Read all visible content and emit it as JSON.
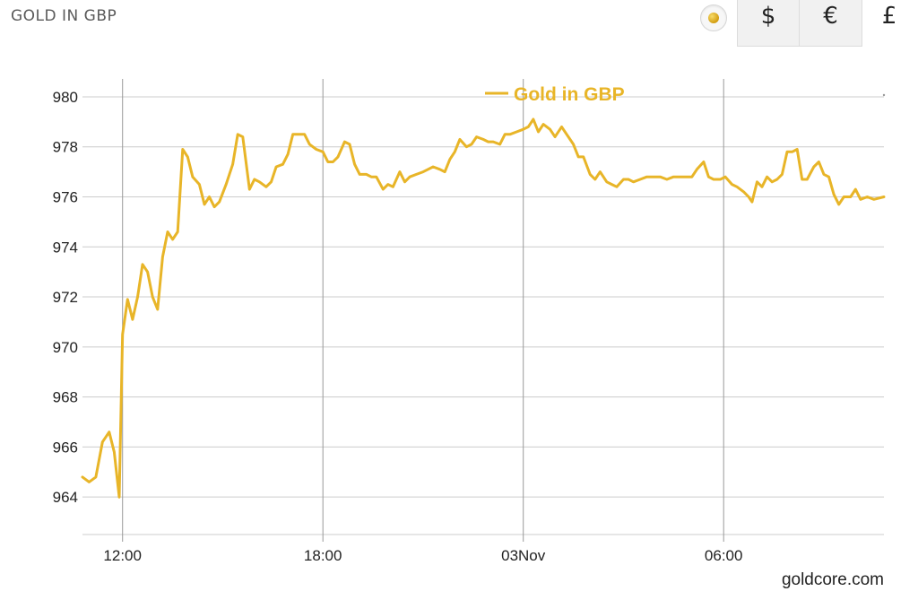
{
  "header": {
    "title": "GOLD IN GBP"
  },
  "currency_tabs": [
    {
      "label": "$",
      "active": false
    },
    {
      "label": "€",
      "active": false
    },
    {
      "label": "£",
      "active": true
    }
  ],
  "icons": {
    "gold_toggle": "gold-dot-icon"
  },
  "colors": {
    "series": "#e8b528",
    "grid": "#cccccc",
    "axis_text": "#222222"
  },
  "watermark": "goldcore.com",
  "chart_data": {
    "type": "line",
    "title": "",
    "xlabel": "",
    "ylabel": "",
    "ylim": [
      962.5,
      980.5
    ],
    "xlim": [
      10.8,
      34.8
    ],
    "grid": true,
    "legend": "top-center",
    "y_ticks": [
      964,
      966,
      968,
      970,
      972,
      974,
      976,
      978,
      980
    ],
    "x_ticks": [
      {
        "value": 12,
        "label": "12:00"
      },
      {
        "value": 18,
        "label": "18:00"
      },
      {
        "value": 24,
        "label": "03Nov"
      },
      {
        "value": 30,
        "label": "06:00"
      }
    ],
    "series": [
      {
        "name": "Gold in GBP",
        "color": "#e8b528",
        "points": [
          [
            10.8,
            964.8
          ],
          [
            11.0,
            964.6
          ],
          [
            11.2,
            964.8
          ],
          [
            11.4,
            966.2
          ],
          [
            11.6,
            966.6
          ],
          [
            11.75,
            965.8
          ],
          [
            11.9,
            964.0
          ],
          [
            12.0,
            970.5
          ],
          [
            12.15,
            971.9
          ],
          [
            12.3,
            971.1
          ],
          [
            12.45,
            972.0
          ],
          [
            12.6,
            973.3
          ],
          [
            12.75,
            973.0
          ],
          [
            12.9,
            972.0
          ],
          [
            13.05,
            971.5
          ],
          [
            13.2,
            973.6
          ],
          [
            13.35,
            974.6
          ],
          [
            13.5,
            974.3
          ],
          [
            13.65,
            974.6
          ],
          [
            13.8,
            977.9
          ],
          [
            13.95,
            977.6
          ],
          [
            14.1,
            976.8
          ],
          [
            14.3,
            976.5
          ],
          [
            14.45,
            975.7
          ],
          [
            14.6,
            976.0
          ],
          [
            14.75,
            975.6
          ],
          [
            14.9,
            975.8
          ],
          [
            15.1,
            976.5
          ],
          [
            15.3,
            977.3
          ],
          [
            15.45,
            978.5
          ],
          [
            15.6,
            978.4
          ],
          [
            15.8,
            976.3
          ],
          [
            15.95,
            976.7
          ],
          [
            16.1,
            976.6
          ],
          [
            16.3,
            976.4
          ],
          [
            16.45,
            976.6
          ],
          [
            16.6,
            977.2
          ],
          [
            16.8,
            977.3
          ],
          [
            16.95,
            977.7
          ],
          [
            17.1,
            978.5
          ],
          [
            17.3,
            978.5
          ],
          [
            17.45,
            978.5
          ],
          [
            17.6,
            978.1
          ],
          [
            17.8,
            977.9
          ],
          [
            18.0,
            977.8
          ],
          [
            18.15,
            977.4
          ],
          [
            18.3,
            977.4
          ],
          [
            18.45,
            977.6
          ],
          [
            18.65,
            978.2
          ],
          [
            18.8,
            978.1
          ],
          [
            18.95,
            977.3
          ],
          [
            19.1,
            976.9
          ],
          [
            19.3,
            976.9
          ],
          [
            19.45,
            976.8
          ],
          [
            19.6,
            976.8
          ],
          [
            19.8,
            976.3
          ],
          [
            19.95,
            976.5
          ],
          [
            20.1,
            976.4
          ],
          [
            20.3,
            977.0
          ],
          [
            20.45,
            976.6
          ],
          [
            20.6,
            976.8
          ],
          [
            20.8,
            976.9
          ],
          [
            21.0,
            977.0
          ],
          [
            21.15,
            977.1
          ],
          [
            21.3,
            977.2
          ],
          [
            21.5,
            977.1
          ],
          [
            21.65,
            977.0
          ],
          [
            21.8,
            977.5
          ],
          [
            21.95,
            977.8
          ],
          [
            22.1,
            978.3
          ],
          [
            22.3,
            978.0
          ],
          [
            22.45,
            978.1
          ],
          [
            22.6,
            978.4
          ],
          [
            22.8,
            978.3
          ],
          [
            22.95,
            978.2
          ],
          [
            23.1,
            978.2
          ],
          [
            23.3,
            978.1
          ],
          [
            23.45,
            978.5
          ],
          [
            23.6,
            978.5
          ],
          [
            23.8,
            978.6
          ],
          [
            24.0,
            978.7
          ],
          [
            24.15,
            978.8
          ],
          [
            24.3,
            979.1
          ],
          [
            24.45,
            978.6
          ],
          [
            24.6,
            978.9
          ],
          [
            24.8,
            978.7
          ],
          [
            24.95,
            978.4
          ],
          [
            25.15,
            978.8
          ],
          [
            25.3,
            978.5
          ],
          [
            25.5,
            978.1
          ],
          [
            25.65,
            977.6
          ],
          [
            25.8,
            977.6
          ],
          [
            26.0,
            976.9
          ],
          [
            26.15,
            976.7
          ],
          [
            26.3,
            977.0
          ],
          [
            26.5,
            976.6
          ],
          [
            26.65,
            976.5
          ],
          [
            26.8,
            976.4
          ],
          [
            27.0,
            976.7
          ],
          [
            27.15,
            976.7
          ],
          [
            27.3,
            976.6
          ],
          [
            27.5,
            976.7
          ],
          [
            27.7,
            976.8
          ],
          [
            27.9,
            976.8
          ],
          [
            28.1,
            976.8
          ],
          [
            28.3,
            976.7
          ],
          [
            28.5,
            976.8
          ],
          [
            28.7,
            976.8
          ],
          [
            28.9,
            976.8
          ],
          [
            29.05,
            976.8
          ],
          [
            29.2,
            977.1
          ],
          [
            29.4,
            977.4
          ],
          [
            29.55,
            976.8
          ],
          [
            29.7,
            976.7
          ],
          [
            29.9,
            976.7
          ],
          [
            30.05,
            976.8
          ],
          [
            30.25,
            976.5
          ],
          [
            30.4,
            976.4
          ],
          [
            30.6,
            976.2
          ],
          [
            30.75,
            976.0
          ],
          [
            30.85,
            975.8
          ],
          [
            31.0,
            976.6
          ],
          [
            31.15,
            976.4
          ],
          [
            31.3,
            976.8
          ],
          [
            31.45,
            976.6
          ],
          [
            31.6,
            976.7
          ],
          [
            31.75,
            976.9
          ],
          [
            31.9,
            977.8
          ],
          [
            32.05,
            977.8
          ],
          [
            32.2,
            977.9
          ],
          [
            32.35,
            976.7
          ],
          [
            32.5,
            976.7
          ],
          [
            32.7,
            977.2
          ],
          [
            32.85,
            977.4
          ],
          [
            33.0,
            976.9
          ],
          [
            33.15,
            976.8
          ],
          [
            33.3,
            976.1
          ],
          [
            33.45,
            975.7
          ],
          [
            33.6,
            976.0
          ],
          [
            33.8,
            976.0
          ],
          [
            33.95,
            976.3
          ],
          [
            34.1,
            975.9
          ],
          [
            34.3,
            976.0
          ],
          [
            34.5,
            975.9
          ],
          [
            34.8,
            976.0
          ]
        ]
      }
    ]
  }
}
